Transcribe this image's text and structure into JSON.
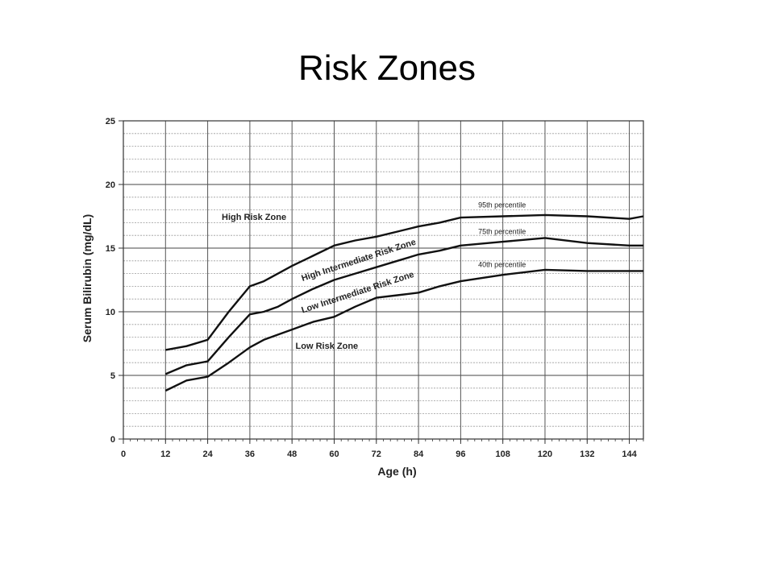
{
  "slide": {
    "title": "Risk Zones"
  },
  "chart_data": {
    "type": "line",
    "title": "",
    "xlabel": "Age (h)",
    "ylabel": "Serum Bilirubin (mg/dL)",
    "xlim": [
      0,
      148
    ],
    "ylim": [
      0,
      25
    ],
    "x_ticks": [
      0,
      12,
      24,
      36,
      48,
      60,
      72,
      84,
      96,
      108,
      120,
      132,
      144
    ],
    "y_ticks": [
      0,
      5,
      10,
      15,
      20,
      25
    ],
    "grid": true,
    "series": [
      {
        "name": "95th percentile",
        "x": [
          12,
          18,
          24,
          30,
          36,
          40,
          44,
          48,
          54,
          60,
          66,
          72,
          78,
          84,
          90,
          96,
          108,
          120,
          132,
          144,
          148
        ],
        "y": [
          7.0,
          7.3,
          7.8,
          10.0,
          12.0,
          12.4,
          13.0,
          13.6,
          14.4,
          15.2,
          15.6,
          15.9,
          16.3,
          16.7,
          17.0,
          17.4,
          17.5,
          17.6,
          17.5,
          17.3,
          17.5
        ]
      },
      {
        "name": "75th percentile",
        "x": [
          12,
          18,
          24,
          30,
          36,
          40,
          44,
          48,
          54,
          60,
          66,
          72,
          78,
          84,
          90,
          96,
          108,
          120,
          132,
          144,
          148
        ],
        "y": [
          5.1,
          5.8,
          6.1,
          8.0,
          9.8,
          10.0,
          10.4,
          11.0,
          11.8,
          12.5,
          13.0,
          13.5,
          14.0,
          14.5,
          14.8,
          15.2,
          15.5,
          15.8,
          15.4,
          15.2,
          15.2
        ]
      },
      {
        "name": "40th percentile",
        "x": [
          12,
          18,
          24,
          30,
          36,
          40,
          44,
          48,
          54,
          60,
          66,
          72,
          78,
          84,
          90,
          96,
          108,
          120,
          132,
          144,
          148
        ],
        "y": [
          3.8,
          4.6,
          4.9,
          6.0,
          7.2,
          7.8,
          8.2,
          8.6,
          9.2,
          9.6,
          10.4,
          11.1,
          11.3,
          11.5,
          12.0,
          12.4,
          12.9,
          13.3,
          13.2,
          13.2,
          13.2
        ]
      }
    ],
    "series_labels": [
      {
        "text": "95th percentile",
        "x": 101,
        "y": 18.2
      },
      {
        "text": "75th percentile",
        "x": 101,
        "y": 16.1
      },
      {
        "text": "40th percentile",
        "x": 101,
        "y": 13.5
      }
    ],
    "annotations": [
      {
        "text": "High Risk Zone",
        "x": 28,
        "y": 17.2,
        "rotate": 0
      },
      {
        "text": "High Intermediate Risk Zone",
        "x": 51,
        "y": 12.4,
        "rotate": -18
      },
      {
        "text": "Low Intermediate Risk Zone",
        "x": 51,
        "y": 9.9,
        "rotate": -18
      },
      {
        "text": "Low Risk Zone",
        "x": 49,
        "y": 7.1,
        "rotate": 0
      }
    ]
  }
}
